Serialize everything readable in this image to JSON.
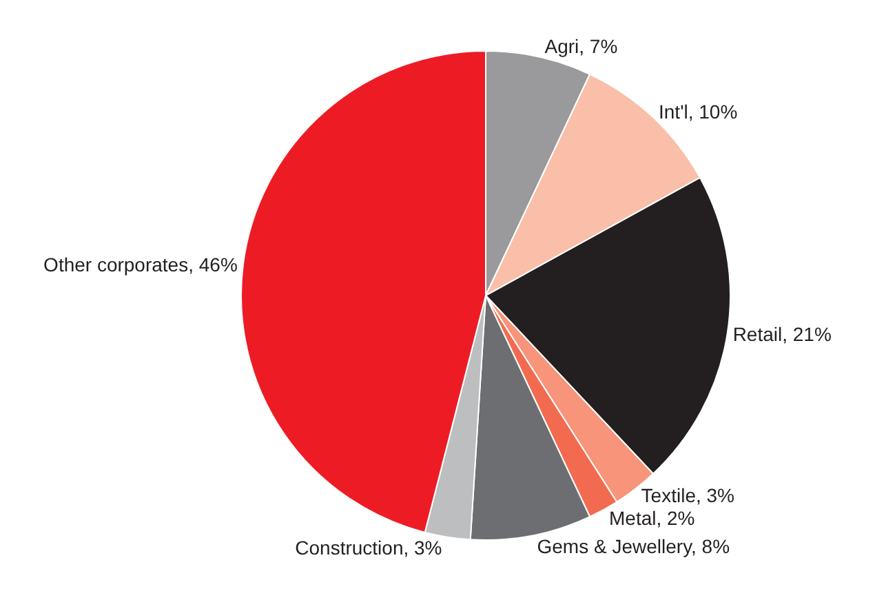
{
  "chart_data": {
    "type": "pie",
    "categories": [
      "Agri",
      "Int'l",
      "Retail",
      "Textile",
      "Metal",
      "Gems & Jewellery",
      "Construction",
      "Other corporates"
    ],
    "values": [
      7,
      10,
      21,
      3,
      2,
      8,
      3,
      46
    ],
    "value_labels": [
      "7%",
      "10%",
      "21%",
      "3%",
      "2%",
      "8%",
      "3%",
      "46%"
    ],
    "colors": [
      "#9a9a9c",
      "#f9bfa8",
      "#231f20",
      "#f7947a",
      "#f26b50",
      "#6d6e71",
      "#bcbec0",
      "#ed1c24"
    ],
    "legend": false
  }
}
